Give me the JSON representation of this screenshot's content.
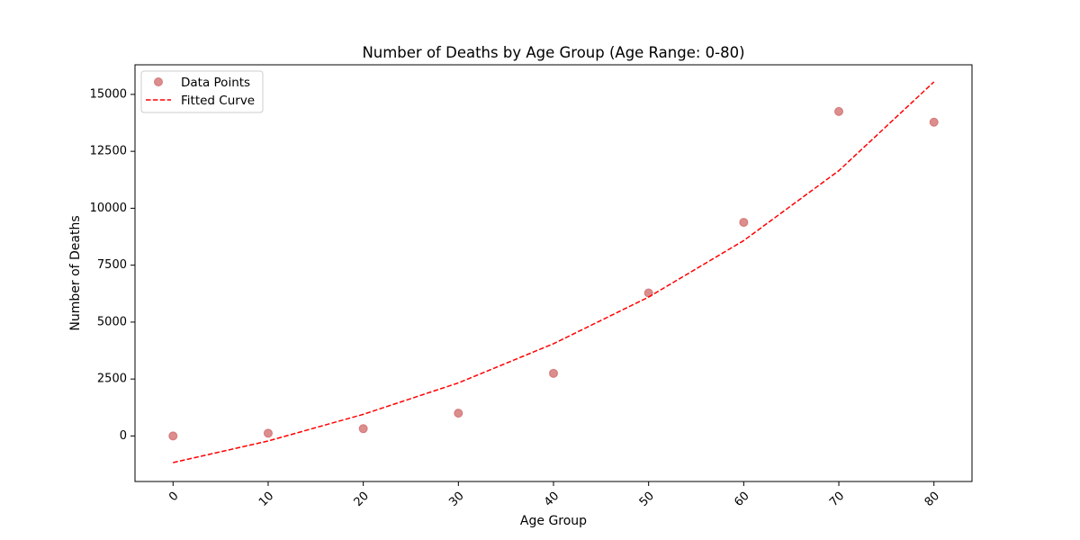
{
  "chart_data": {
    "type": "scatter",
    "title": "Number of Deaths by Age Group (Age Range: 0-80)",
    "xlabel": "Age Group",
    "ylabel": "Number of Deaths",
    "xlim": [
      -4,
      84
    ],
    "ylim": [
      -2000,
      16300
    ],
    "x_ticks": [
      0,
      10,
      20,
      30,
      40,
      50,
      60,
      70,
      80
    ],
    "y_ticks": [
      0,
      2500,
      5000,
      7500,
      10000,
      12500,
      15000
    ],
    "x_tick_rotation_deg": 45,
    "grid": false,
    "legend_position": "top-left",
    "series": [
      {
        "name": "Data Points",
        "kind": "scatter",
        "color": "#cd5c5c",
        "x": [
          0,
          10,
          20,
          30,
          40,
          50,
          60,
          70,
          80
        ],
        "y": [
          0,
          120,
          320,
          1000,
          2750,
          6280,
          9380,
          14250,
          13780
        ]
      },
      {
        "name": "Fitted Curve",
        "kind": "line",
        "style": "dashed",
        "color": "#ff0000",
        "x": [
          0,
          10,
          20,
          30,
          40,
          50,
          60,
          70,
          80
        ],
        "y": [
          -1170,
          -220,
          950,
          2330,
          4050,
          6100,
          8580,
          11650,
          15550
        ]
      }
    ]
  }
}
